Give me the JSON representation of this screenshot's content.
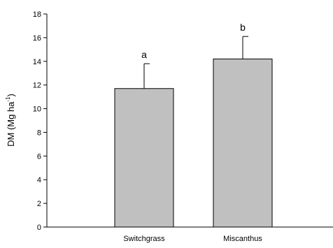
{
  "chart_data": {
    "type": "bar",
    "categories": [
      "Switchgrass",
      "Miscanthus"
    ],
    "values": [
      11.7,
      14.2
    ],
    "error_upper": [
      13.8,
      16.1
    ],
    "significance_letters": [
      "a",
      "b"
    ],
    "ylabel_main": "DM (Mg ha",
    "ylabel_sup": "-1",
    "ylabel_close": ")",
    "ylim": [
      0,
      18
    ],
    "yticks": [
      0,
      2,
      4,
      6,
      8,
      10,
      12,
      14,
      16,
      18
    ],
    "bar_color": "#c0c0c0",
    "grid": false
  }
}
